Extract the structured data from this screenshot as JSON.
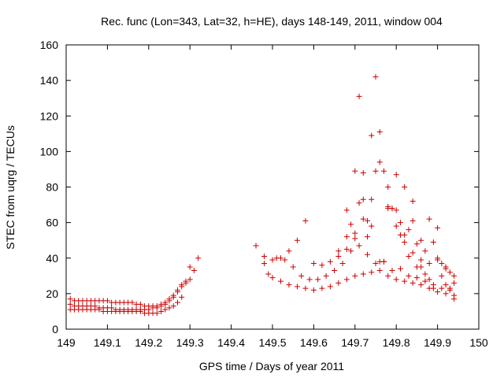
{
  "chart_data": {
    "type": "scatter",
    "title": "Rec. func (Lon=343, Lat=32, h=HE), days 148-149, 2011, window 004",
    "xlabel": "GPS time / Days of year 2011",
    "ylabel": "STEC from uqrg / TECUs",
    "xlim": [
      149,
      150
    ],
    "ylim": [
      0,
      160
    ],
    "x_ticks": [
      149,
      149.1,
      149.2,
      149.3,
      149.4,
      149.5,
      149.6,
      149.7,
      149.8,
      149.9,
      150
    ],
    "x_tick_labels": [
      "149",
      "149.1",
      "149.2",
      "149.3",
      "149.4",
      "149.5",
      "149.6",
      "149.7",
      "149.8",
      "149.9",
      "150"
    ],
    "y_ticks": [
      0,
      20,
      40,
      60,
      80,
      100,
      120,
      140,
      160
    ],
    "y_tick_labels": [
      "0",
      "20",
      "40",
      "60",
      "80",
      "100",
      "120",
      "140",
      "160"
    ],
    "grid": false,
    "legend": false,
    "marker": "plus",
    "color": "#cc0000",
    "series": [
      {
        "x": [
          149.01,
          149.02,
          149.03,
          149.04,
          149.05,
          149.06,
          149.07,
          149.08,
          149.09,
          149.1,
          149.11,
          149.12,
          149.13,
          149.14,
          149.15,
          149.16,
          149.17,
          149.18,
          149.19,
          149.2,
          149.21,
          149.22,
          149.23,
          149.24,
          149.25,
          149.26,
          149.27,
          149.28
        ],
        "y": [
          11,
          11,
          11,
          11,
          11,
          11,
          11,
          11,
          10,
          10,
          10,
          10,
          10,
          10,
          10,
          10,
          10,
          10,
          9,
          9,
          9,
          9,
          10,
          11,
          12,
          13,
          15,
          18
        ]
      },
      {
        "x": [
          149.01,
          149.02,
          149.03,
          149.04,
          149.05,
          149.06,
          149.07,
          149.08,
          149.09,
          149.1,
          149.11,
          149.12,
          149.13,
          149.14,
          149.15,
          149.16,
          149.17,
          149.18,
          149.19,
          149.2,
          149.21,
          149.22,
          149.23,
          149.24,
          149.25,
          149.26,
          149.27,
          149.28,
          149.29,
          149.3
        ],
        "y": [
          14,
          13,
          13,
          13,
          13,
          13,
          13,
          12,
          12,
          12,
          12,
          11,
          11,
          11,
          11,
          11,
          11,
          11,
          11,
          11,
          12,
          12,
          13,
          14,
          16,
          18,
          21,
          24,
          27,
          35
        ]
      },
      {
        "x": [
          149.01,
          149.02,
          149.03,
          149.04,
          149.05,
          149.06,
          149.07,
          149.08,
          149.09,
          149.1,
          149.11,
          149.12,
          149.13,
          149.14,
          149.15,
          149.16,
          149.17,
          149.18,
          149.19,
          149.2,
          149.21,
          149.22,
          149.23,
          149.24,
          149.25,
          149.26,
          149.27,
          149.28,
          149.29,
          149.3,
          149.31,
          149.32
        ],
        "y": [
          17,
          16,
          16,
          16,
          16,
          16,
          16,
          16,
          16,
          16,
          15,
          15,
          15,
          15,
          15,
          15,
          14,
          14,
          13,
          13,
          13,
          13,
          14,
          15,
          17,
          19,
          22,
          25,
          26,
          28,
          33,
          40
        ]
      },
      {
        "x": [
          149.46,
          149.48,
          149.5,
          149.52,
          149.54,
          149.56,
          149.58,
          149.6,
          149.62,
          149.64,
          149.66,
          149.68,
          149.7,
          149.72,
          149.74,
          149.76,
          149.78,
          149.8,
          149.82,
          149.84,
          149.86,
          149.88,
          149.9,
          149.92,
          149.94
        ],
        "y": [
          47,
          37,
          29,
          27,
          25,
          24,
          23,
          22,
          23,
          24,
          26,
          28,
          30,
          31,
          32,
          33,
          30,
          28,
          27,
          26,
          25,
          23,
          21,
          20,
          19
        ]
      },
      {
        "x": [
          149.49,
          149.51,
          149.53,
          149.55,
          149.57,
          149.59,
          149.61,
          149.63,
          149.65,
          149.67,
          149.69,
          149.71,
          149.73,
          149.75,
          149.77,
          149.79,
          149.81,
          149.83,
          149.85,
          149.87,
          149.89,
          149.91,
          149.93
        ],
        "y": [
          31,
          40,
          39,
          35,
          30,
          28,
          28,
          30,
          33,
          37,
          44,
          47,
          42,
          37,
          38,
          33,
          34,
          30,
          29,
          27,
          25,
          23,
          22
        ]
      },
      {
        "x": [
          149.48,
          149.5,
          149.52,
          149.54,
          149.56,
          149.58,
          149.6,
          149.62,
          149.64,
          149.66,
          149.68,
          149.7,
          149.72,
          149.74,
          149.76,
          149.78,
          149.8,
          149.82,
          149.84,
          149.86,
          149.88,
          149.9,
          149.92,
          149.94
        ],
        "y": [
          41,
          39,
          40,
          44,
          50,
          61,
          37,
          36,
          38,
          44,
          52,
          54,
          62,
          73,
          94,
          69,
          58,
          49,
          43,
          39,
          37,
          40,
          34,
          30
        ]
      },
      {
        "x": [
          149.66,
          149.68,
          149.7,
          149.71,
          149.72,
          149.73,
          149.74,
          149.75,
          149.76,
          149.77,
          149.78,
          149.79,
          149.8,
          149.81,
          149.82,
          149.83,
          149.84,
          149.85,
          149.86,
          149.87,
          149.88,
          149.89,
          149.9,
          149.91,
          149.92,
          149.93,
          149.94
        ],
        "y": [
          41,
          45,
          51,
          131,
          88,
          61,
          109,
          142,
          111,
          89,
          80,
          68,
          67,
          60,
          80,
          56,
          72,
          48,
          50,
          44,
          62,
          49,
          57,
          37,
          35,
          32,
          26
        ]
      },
      {
        "x": [
          149.68,
          149.69,
          149.7,
          149.71,
          149.72,
          149.73,
          149.74,
          149.75,
          149.76,
          149.77,
          149.78,
          149.79,
          149.8,
          149.81,
          149.82,
          149.83,
          149.84,
          149.85,
          149.86,
          149.87,
          149.88,
          149.89,
          149.9,
          149.91,
          149.92,
          149.93,
          149.94
        ],
        "y": [
          67,
          59,
          89,
          71,
          73,
          52,
          58,
          89,
          38,
          38,
          68,
          68,
          87,
          53,
          53,
          41,
          61,
          35,
          35,
          31,
          28,
          23,
          39,
          30,
          25,
          23,
          17
        ]
      }
    ]
  }
}
